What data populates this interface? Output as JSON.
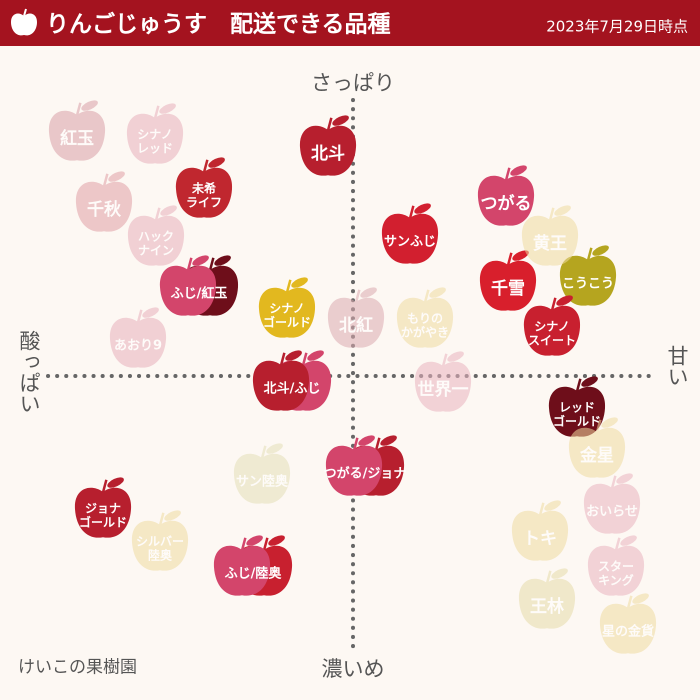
{
  "header": {
    "title": "りんごじゅうす　配送できる品種",
    "date": "2023年7月29日時点"
  },
  "axes": {
    "top": "さっぱり",
    "bottom": "濃いめ",
    "left": "酸っぱい",
    "right": "甘い"
  },
  "footer": "けいこの果樹園",
  "apples": [
    {
      "lines": [
        "北斗"
      ],
      "available": true,
      "colors": [
        "#b71f2e"
      ]
    },
    {
      "lines": [
        "未希",
        "ライフ"
      ],
      "available": true,
      "colors": [
        "#c0272f"
      ]
    },
    {
      "lines": [
        "サンふじ"
      ],
      "available": true,
      "colors": [
        "#d21f2f"
      ]
    },
    {
      "lines": [
        "つがる"
      ],
      "available": true,
      "colors": [
        "#d3456b"
      ]
    },
    {
      "lines": [
        "千雪"
      ],
      "available": true,
      "colors": [
        "#d81f2c"
      ]
    },
    {
      "lines": [
        "こうこう"
      ],
      "available": true,
      "colors": [
        "#b5a51f"
      ]
    },
    {
      "lines": [
        "シナノ",
        "スイート"
      ],
      "available": true,
      "colors": [
        "#c8202f"
      ]
    },
    {
      "lines": [
        "ふじ/紅玉"
      ],
      "available": true,
      "colors": [
        "#d3456b",
        "#6e0e1a"
      ]
    },
    {
      "lines": [
        "シナノ",
        "ゴールド"
      ],
      "available": true,
      "colors": [
        "#e2b81f"
      ]
    },
    {
      "lines": [
        "北斗/ふじ"
      ],
      "available": true,
      "colors": [
        "#b71f2e",
        "#d3456b"
      ]
    },
    {
      "lines": [
        "レッド",
        "ゴールド"
      ],
      "available": true,
      "colors": [
        "#6e0e1a"
      ]
    },
    {
      "lines": [
        "つがる/ジョナ"
      ],
      "available": true,
      "colors": [
        "#d3456b",
        "#b71f2e"
      ]
    },
    {
      "lines": [
        "ジョナ",
        "ゴールド"
      ],
      "available": true,
      "colors": [
        "#b71f2e"
      ]
    },
    {
      "lines": [
        "ふじ/陸奥"
      ],
      "available": true,
      "colors": [
        "#d3456b",
        "#c8202f"
      ]
    },
    {
      "lines": [
        "紅玉"
      ],
      "available": false,
      "colors": [
        "#d9a0a8"
      ]
    },
    {
      "lines": [
        "シナノ",
        "レッド"
      ],
      "available": false,
      "colors": [
        "#e8b0bc"
      ]
    },
    {
      "lines": [
        "千秋"
      ],
      "available": false,
      "colors": [
        "#e0a0a6"
      ]
    },
    {
      "lines": [
        "ハック",
        "ナイン"
      ],
      "available": false,
      "colors": [
        "#e8b0bc"
      ]
    },
    {
      "lines": [
        "あおり9"
      ],
      "available": false,
      "colors": [
        "#e8b0bc"
      ]
    },
    {
      "lines": [
        "北紅"
      ],
      "available": false,
      "colors": [
        "#dcaab0"
      ]
    },
    {
      "lines": [
        "もりの",
        "かがやき"
      ],
      "available": false,
      "colors": [
        "#efdba0"
      ]
    },
    {
      "lines": [
        "黄王"
      ],
      "available": false,
      "colors": [
        "#efdba0"
      ]
    },
    {
      "lines": [
        "世界一"
      ],
      "available": false,
      "colors": [
        "#eab4c0"
      ]
    },
    {
      "lines": [
        "金星"
      ],
      "available": false,
      "colors": [
        "#efdba0"
      ]
    },
    {
      "lines": [
        "おいらせ"
      ],
      "available": false,
      "colors": [
        "#eab4c0"
      ]
    },
    {
      "lines": [
        "サン陸奥"
      ],
      "available": false,
      "colors": [
        "#e4e0b8"
      ]
    },
    {
      "lines": [
        "シルバー",
        "陸奥"
      ],
      "available": false,
      "colors": [
        "#efdba0"
      ]
    },
    {
      "lines": [
        "トキ"
      ],
      "available": false,
      "colors": [
        "#efdba0"
      ]
    },
    {
      "lines": [
        "スター",
        "キング"
      ],
      "available": false,
      "colors": [
        "#eab4c0"
      ]
    },
    {
      "lines": [
        "王林"
      ],
      "available": false,
      "colors": [
        "#e6dcaa"
      ]
    },
    {
      "lines": [
        "星の金貨"
      ],
      "available": false,
      "colors": [
        "#efdba0"
      ]
    }
  ]
}
